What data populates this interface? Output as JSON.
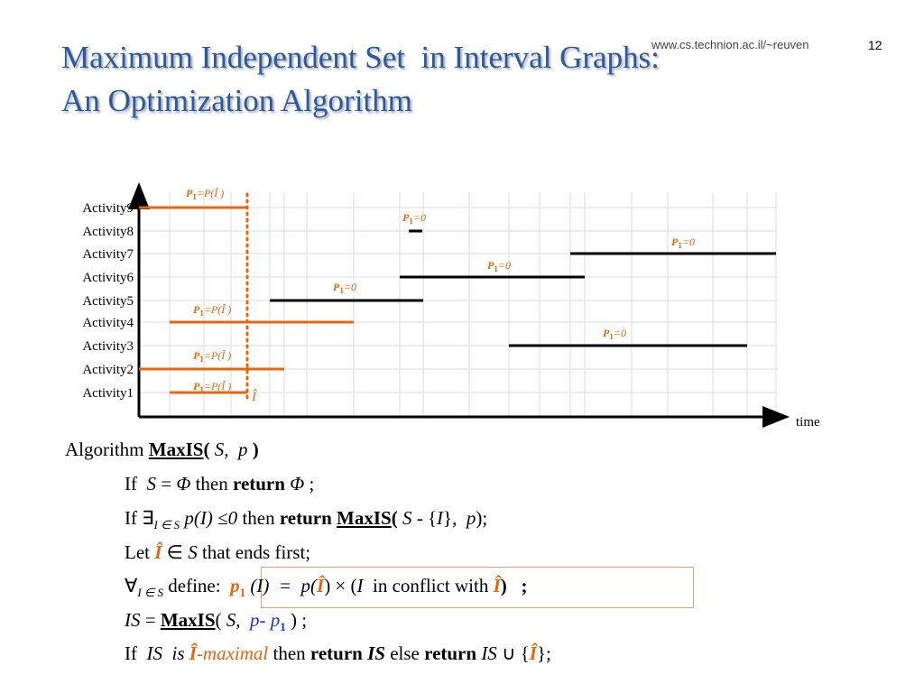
{
  "header": {
    "title": [
      "Maximum Independent Set  in Interval Graphs:",
      "An Optimization Algorithm"
    ],
    "url": "www.cs.technion.ac.il/~reuven",
    "page": "12"
  },
  "diagram": {
    "activities": [
      "Activity9",
      "Activity8",
      "Activity7",
      "Activity6",
      "Activity5",
      "Activity4",
      "Activity3",
      "Activity2",
      "Activity1"
    ],
    "annotations": [
      [
        "P",
        "1",
        "=P(Î )"
      ],
      [
        "P",
        "1",
        "=0"
      ],
      [
        "P",
        "1",
        "=0"
      ],
      [
        "P",
        "1",
        "=0"
      ],
      [
        "P",
        "1",
        "=0"
      ],
      [
        "P",
        "1",
        "=P(Î )"
      ],
      [
        "P",
        "1",
        "=0"
      ],
      [
        "P",
        "1",
        "=P(Î )"
      ],
      [
        "P",
        "1",
        "=P(Î )"
      ]
    ],
    "marker": "Î",
    "axis_label": "time"
  },
  "algorithm": {
    "lines": [
      [
        "Algorithm ",
        "MaxIS",
        "( ",
        "S,  p",
        " )"
      ],
      [
        "If  ",
        "S",
        " = ",
        "Φ",
        " then ",
        "return",
        " ",
        "Φ",
        " ;"
      ],
      [
        "If ∃",
        "I ∈ S",
        " ",
        "p(I) ≤0",
        " then ",
        "return",
        " ",
        "MaxIS",
        "( ",
        "S",
        " - {",
        "I",
        "},  ",
        "p",
        ");"
      ],
      [
        "Let ",
        "Î",
        " ∈ ",
        "S",
        " that ends first;"
      ],
      [
        "∀",
        "I ∈ S",
        " define:  ",
        "p",
        "1",
        " (I)  =  ",
        "p(",
        "Î",
        ") × (",
        "I",
        "  in conflict with ",
        "Î",
        ")   ;"
      ],
      [
        "IS",
        " = ",
        "MaxIS",
        "( ",
        "S,  ",
        "p- p",
        "1",
        " ) ;"
      ],
      [
        "If  ",
        "IS  is ",
        "Î",
        "-maximal",
        " then ",
        "return",
        " ",
        "IS",
        " else ",
        "return",
        " ",
        "IS",
        " ∪ {",
        "Î",
        "};"
      ]
    ]
  }
}
